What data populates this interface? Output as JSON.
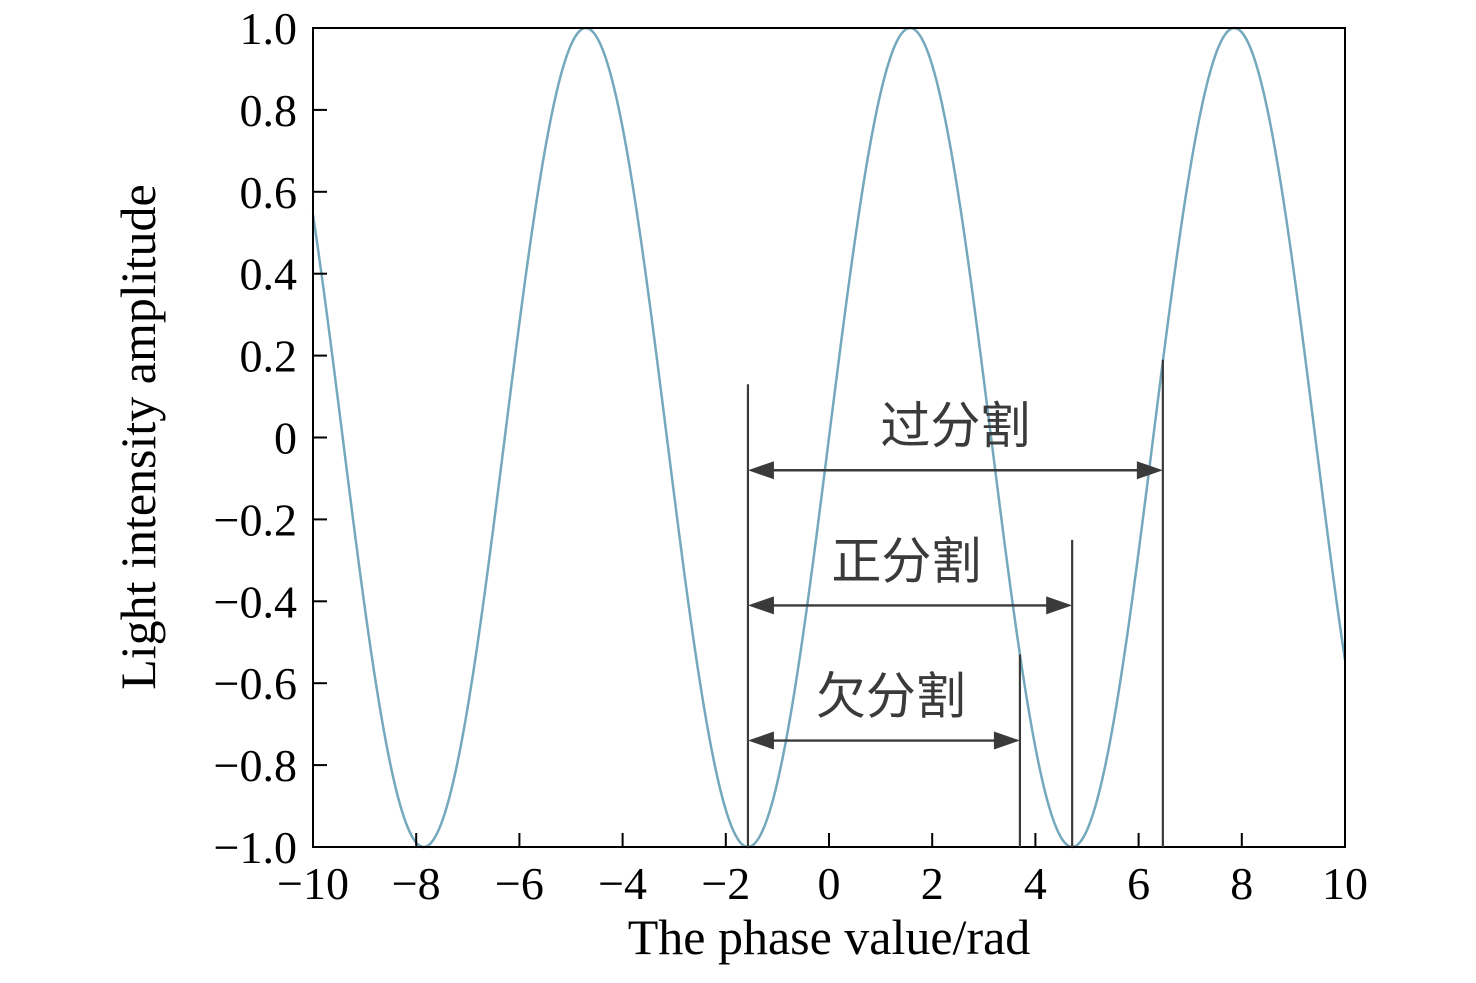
{
  "figure": {
    "background": "#ffffff"
  },
  "chart_data": {
    "type": "line",
    "title": "",
    "xlabel": "The phase value/rad",
    "ylabel": "Light intensity amplitude",
    "xlim": [
      -10,
      10
    ],
    "ylim": [
      -1,
      1
    ],
    "grid": false,
    "frame": true,
    "axis_color": "#000000",
    "annotation_color": "#3a3a3a",
    "x_ticks": [
      -10,
      -8,
      -6,
      -4,
      -2,
      0,
      2,
      4,
      6,
      8,
      10
    ],
    "x_tick_labels": [
      "−10",
      "−8",
      "−6",
      "−4",
      "−2",
      "0",
      "2",
      "4",
      "6",
      "8",
      "10"
    ],
    "y_ticks": [
      1,
      0.8,
      0.6,
      0.4,
      0.2,
      0,
      -0.2,
      -0.4,
      -0.6,
      -0.8,
      -1
    ],
    "y_tick_labels": [
      "1.0",
      "0.8",
      "0.6",
      "0.4",
      "0.2",
      "0",
      "−0.2",
      "−0.4",
      "−0.6",
      "−0.8",
      "−1.0"
    ],
    "series": [
      {
        "name": "light-intensity-sine-wave",
        "function": "sin(x)",
        "x_start": -10,
        "x_end": 10,
        "sample_step": 0.04,
        "color": "#74a8bd"
      }
    ],
    "vertical_lines": [
      {
        "x": -1.5708,
        "y_bottom": -1,
        "y_top": 0.13
      },
      {
        "x": 3.7,
        "y_bottom": -1,
        "y_top": -0.53
      },
      {
        "x": 4.7124,
        "y_bottom": -1,
        "y_top": -0.25
      },
      {
        "x": 6.47,
        "y_bottom": -1,
        "y_top": 0.19
      }
    ],
    "arrows": [
      {
        "label": "过分割",
        "name": "over-segmentation",
        "x_start": -1.5708,
        "x_end": 6.47,
        "y": -0.08,
        "label_x": 2.45,
        "label_y": 0.03
      },
      {
        "label": "正分割",
        "name": "correct-segmentation",
        "x_start": -1.5708,
        "x_end": 4.7124,
        "y": -0.41,
        "label_x": 1.5,
        "label_y": -0.3
      },
      {
        "label": "欠分割",
        "name": "under-segmentation",
        "x_start": -1.5708,
        "x_end": 3.7,
        "y": -0.74,
        "label_x": 1.2,
        "label_y": -0.63
      }
    ]
  }
}
